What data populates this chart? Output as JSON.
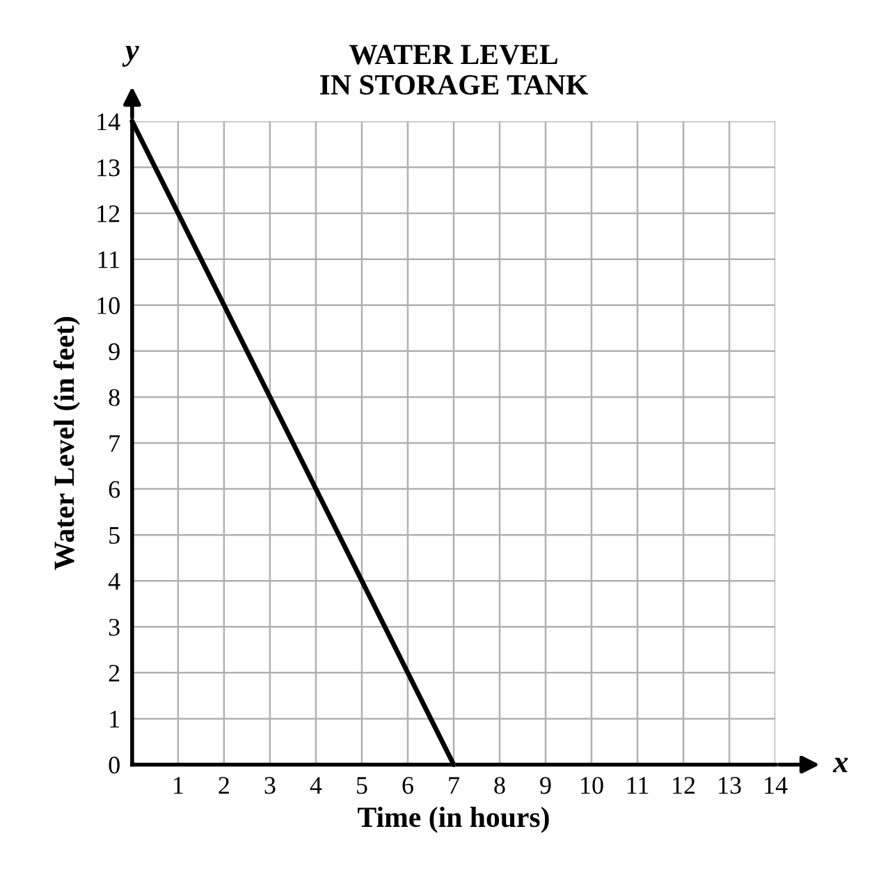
{
  "chart_data": {
    "type": "line",
    "title": "WATER LEVEL\nIN STORAGE TANK",
    "xlabel": "Time (in hours)",
    "ylabel": "Water Level (in feet)",
    "annotations": [
      "y",
      "x"
    ],
    "x": [
      0,
      7
    ],
    "series": [
      {
        "color": "#000000",
        "values": [
          14,
          0
        ]
      }
    ],
    "xlim": [
      0,
      14
    ],
    "ylim": [
      0,
      14
    ],
    "xticks": [
      {
        "value": 0,
        "label": null
      },
      1,
      2,
      3,
      4,
      5,
      6,
      7,
      8,
      9,
      10,
      11,
      12,
      13,
      14
    ],
    "yticks": [
      0,
      1,
      2,
      3,
      4,
      5,
      6,
      7,
      8,
      9,
      10,
      11,
      12,
      13,
      14
    ],
    "grid": true,
    "marker": "none",
    "line_style": "solid"
  }
}
